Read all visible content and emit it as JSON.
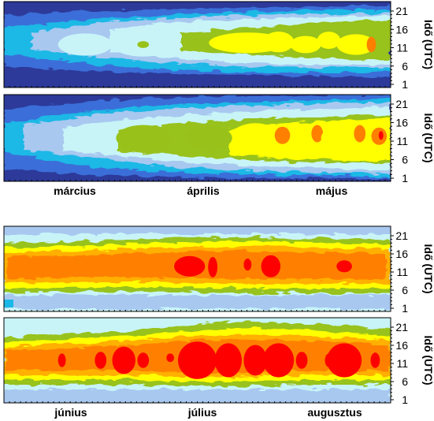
{
  "chart_data": [
    {
      "type": "heatmap",
      "panel": "spring-1",
      "y_ticks": [
        "1",
        "6",
        "11",
        "16",
        "21"
      ],
      "y_label": "Idő (UTC)",
      "x_labels": [],
      "grid": false,
      "level_colors": [
        "#2d3a9a",
        "#3b6ed8",
        "#1ab8e6",
        "#a8c8f0",
        "#c8f4f8",
        "#98c21a",
        "#ffff00",
        "#ffb000",
        "#ff8000",
        "#ff0000"
      ],
      "blobs": [
        {
          "x": 0.21,
          "y": 0.5,
          "rx": 0.07,
          "ry": 0.13,
          "level": 4
        },
        {
          "x": 0.36,
          "y": 0.5,
          "rx": 0.08,
          "ry": 0.14,
          "level": 4
        },
        {
          "x": 0.36,
          "y": 0.5,
          "rx": 0.015,
          "ry": 0.04,
          "level": 5
        },
        {
          "x": 0.55,
          "y": 0.5,
          "rx": 0.07,
          "ry": 0.1,
          "level": 5
        },
        {
          "x": 0.63,
          "y": 0.48,
          "rx": 0.1,
          "ry": 0.12,
          "level": 6
        },
        {
          "x": 0.71,
          "y": 0.47,
          "rx": 0.04,
          "ry": 0.12,
          "level": 6
        },
        {
          "x": 0.78,
          "y": 0.5,
          "rx": 0.04,
          "ry": 0.1,
          "level": 6
        },
        {
          "x": 0.84,
          "y": 0.45,
          "rx": 0.03,
          "ry": 0.1,
          "level": 6
        },
        {
          "x": 0.91,
          "y": 0.5,
          "rx": 0.05,
          "ry": 0.12,
          "level": 6
        },
        {
          "x": 0.95,
          "y": 0.5,
          "rx": 0.012,
          "ry": 0.09,
          "level": 8
        }
      ]
    },
    {
      "type": "heatmap",
      "panel": "spring-2",
      "y_ticks": [
        "1",
        "6",
        "11",
        "16",
        "21"
      ],
      "y_label": "Idő (UTC)",
      "x_labels": [
        "március",
        "április",
        "május"
      ],
      "grid": false,
      "level_colors": [
        "#2d3a9a",
        "#3b6ed8",
        "#1ab8e6",
        "#a8c8f0",
        "#c8f4f8",
        "#98c21a",
        "#ffff00",
        "#ffb000",
        "#ff8000",
        "#ff0000"
      ],
      "blobs": [
        {
          "x": 0.36,
          "y": 0.5,
          "rx": 0.07,
          "ry": 0.15,
          "level": 5
        },
        {
          "x": 0.53,
          "y": 0.5,
          "rx": 0.06,
          "ry": 0.14,
          "level": 5
        },
        {
          "x": 0.65,
          "y": 0.47,
          "rx": 0.06,
          "ry": 0.14,
          "level": 6
        },
        {
          "x": 0.72,
          "y": 0.47,
          "rx": 0.02,
          "ry": 0.1,
          "level": 8
        },
        {
          "x": 0.8,
          "y": 0.5,
          "rx": 0.06,
          "ry": 0.15,
          "level": 6
        },
        {
          "x": 0.81,
          "y": 0.45,
          "rx": 0.015,
          "ry": 0.1,
          "level": 8
        },
        {
          "x": 0.89,
          "y": 0.5,
          "rx": 0.07,
          "ry": 0.16,
          "level": 6
        },
        {
          "x": 0.92,
          "y": 0.45,
          "rx": 0.015,
          "ry": 0.1,
          "level": 8
        },
        {
          "x": 0.97,
          "y": 0.48,
          "rx": 0.02,
          "ry": 0.1,
          "level": 8
        },
        {
          "x": 0.975,
          "y": 0.47,
          "rx": 0.006,
          "ry": 0.05,
          "level": 9
        }
      ]
    },
    {
      "type": "heatmap",
      "panel": "summer-1",
      "y_ticks": [
        "1",
        "6",
        "11",
        "16",
        "21"
      ],
      "y_label": "Idő (UTC)",
      "x_labels": [],
      "grid": false,
      "level_colors": [
        "#2d3a9a",
        "#3b6ed8",
        "#1ab8e6",
        "#a8c8f0",
        "#c8f4f8",
        "#98c21a",
        "#ffff00",
        "#ffb000",
        "#ff8000",
        "#ff0000"
      ],
      "blobs": [
        {
          "x": 0.48,
          "y": 0.47,
          "rx": 0.04,
          "ry": 0.12,
          "level": 9
        },
        {
          "x": 0.54,
          "y": 0.48,
          "rx": 0.012,
          "ry": 0.12,
          "level": 9
        },
        {
          "x": 0.63,
          "y": 0.45,
          "rx": 0.01,
          "ry": 0.07,
          "level": 9
        },
        {
          "x": 0.69,
          "y": 0.47,
          "rx": 0.025,
          "ry": 0.13,
          "level": 9
        },
        {
          "x": 0.88,
          "y": 0.47,
          "rx": 0.02,
          "ry": 0.07,
          "level": 9
        }
      ]
    },
    {
      "type": "heatmap",
      "panel": "summer-2",
      "y_ticks": [
        "1",
        "6",
        "11",
        "16",
        "21"
      ],
      "y_label": "Idő (UTC)",
      "x_labels": [
        "június",
        "július",
        "augusztus"
      ],
      "grid": false,
      "level_colors": [
        "#2d3a9a",
        "#3b6ed8",
        "#1ab8e6",
        "#a8c8f0",
        "#c8f4f8",
        "#98c21a",
        "#ffff00",
        "#ffb000",
        "#ff8000",
        "#ff0000"
      ],
      "blobs": [
        {
          "x": 0.15,
          "y": 0.5,
          "rx": 0.01,
          "ry": 0.08,
          "level": 9
        },
        {
          "x": 0.25,
          "y": 0.5,
          "rx": 0.015,
          "ry": 0.1,
          "level": 9
        },
        {
          "x": 0.31,
          "y": 0.5,
          "rx": 0.03,
          "ry": 0.16,
          "level": 9
        },
        {
          "x": 0.36,
          "y": 0.5,
          "rx": 0.015,
          "ry": 0.09,
          "level": 9
        },
        {
          "x": 0.43,
          "y": 0.47,
          "rx": 0.01,
          "ry": 0.05,
          "level": 9
        },
        {
          "x": 0.5,
          "y": 0.5,
          "rx": 0.05,
          "ry": 0.22,
          "level": 9
        },
        {
          "x": 0.58,
          "y": 0.5,
          "rx": 0.035,
          "ry": 0.2,
          "level": 9
        },
        {
          "x": 0.65,
          "y": 0.5,
          "rx": 0.03,
          "ry": 0.18,
          "level": 9
        },
        {
          "x": 0.71,
          "y": 0.5,
          "rx": 0.04,
          "ry": 0.2,
          "level": 9
        },
        {
          "x": 0.77,
          "y": 0.5,
          "rx": 0.015,
          "ry": 0.1,
          "level": 9
        },
        {
          "x": 0.84,
          "y": 0.5,
          "rx": 0.01,
          "ry": 0.08,
          "level": 9
        },
        {
          "x": 0.88,
          "y": 0.5,
          "rx": 0.045,
          "ry": 0.2,
          "level": 9
        },
        {
          "x": 0.96,
          "y": 0.5,
          "rx": 0.012,
          "ry": 0.09,
          "level": 9
        }
      ]
    }
  ]
}
